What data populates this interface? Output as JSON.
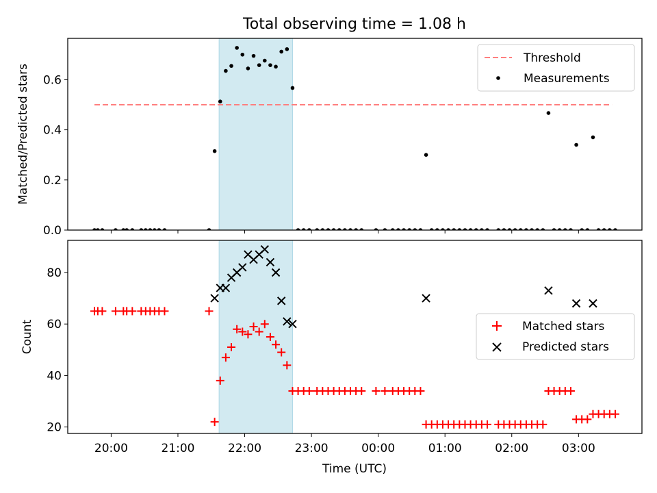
{
  "figure": {
    "title": "Total observing time = 1.08 h",
    "xlabel": "Time (UTC)",
    "xticks": [
      {
        "t": 20.0,
        "label": "20:00"
      },
      {
        "t": 21.0,
        "label": "21:00"
      },
      {
        "t": 22.0,
        "label": "22:00"
      },
      {
        "t": 23.0,
        "label": "23:00"
      },
      {
        "t": 24.0,
        "label": "00:00"
      },
      {
        "t": 25.0,
        "label": "01:00"
      },
      {
        "t": 26.0,
        "label": "02:00"
      },
      {
        "t": 27.0,
        "label": "03:00"
      }
    ],
    "colors": {
      "threshold": "#ff7f7f",
      "measurements": "#000000",
      "matched": "#ff0000",
      "predicted": "#000000",
      "span": "#add8e6"
    }
  },
  "chart_data": [
    {
      "type": "scatter",
      "ylabel": "Matched/Predicted stars",
      "ylim": [
        0.0,
        0.765
      ],
      "yticks": [
        {
          "v": 0.0,
          "label": "0.0"
        },
        {
          "v": 0.2,
          "label": "0.2"
        },
        {
          "v": 0.4,
          "label": "0.4"
        },
        {
          "v": 0.6,
          "label": "0.6"
        }
      ],
      "xlim": [
        "19:21",
        "03:57"
      ],
      "highlight_span": [
        "21:37",
        "22:43"
      ],
      "threshold": {
        "value": 0.5,
        "from": "19:45",
        "to": "03:30"
      },
      "legend": {
        "placement": "upper right",
        "entries": [
          "Threshold",
          "Measurements"
        ]
      },
      "series": [
        {
          "name": "Measurements",
          "marker": "dot",
          "points": [
            [
              "19:45",
              0.0
            ],
            [
              "19:48",
              0.0
            ],
            [
              "19:52",
              0.0
            ],
            [
              "20:04",
              0.0
            ],
            [
              "20:11",
              0.0
            ],
            [
              "20:14",
              0.0
            ],
            [
              "20:19",
              0.0
            ],
            [
              "20:27",
              0.0
            ],
            [
              "20:31",
              0.0
            ],
            [
              "20:35",
              0.0
            ],
            [
              "20:39",
              0.0
            ],
            [
              "20:43",
              0.0
            ],
            [
              "20:48",
              0.0
            ],
            [
              "21:28",
              0.0
            ],
            [
              "21:33",
              0.315
            ],
            [
              "21:38",
              0.513
            ],
            [
              "21:43",
              0.635
            ],
            [
              "21:48",
              0.655
            ],
            [
              "21:53",
              0.727
            ],
            [
              "21:58",
              0.7
            ],
            [
              "22:03",
              0.645
            ],
            [
              "22:08",
              0.695
            ],
            [
              "22:13",
              0.658
            ],
            [
              "22:18",
              0.676
            ],
            [
              "22:23",
              0.658
            ],
            [
              "22:28",
              0.652
            ],
            [
              "22:33",
              0.712
            ],
            [
              "22:38",
              0.722
            ],
            [
              "22:43",
              0.567
            ],
            [
              "22:48",
              0.0
            ],
            [
              "22:53",
              0.0
            ],
            [
              "22:58",
              0.0
            ],
            [
              "23:05",
              0.0
            ],
            [
              "23:10",
              0.0
            ],
            [
              "23:15",
              0.0
            ],
            [
              "23:20",
              0.0
            ],
            [
              "23:25",
              0.0
            ],
            [
              "23:30",
              0.0
            ],
            [
              "23:35",
              0.0
            ],
            [
              "23:40",
              0.0
            ],
            [
              "23:45",
              0.0
            ],
            [
              "23:58",
              0.0
            ],
            [
              "00:06",
              0.0
            ],
            [
              "00:13",
              0.0
            ],
            [
              "00:18",
              0.0
            ],
            [
              "00:23",
              0.0
            ],
            [
              "00:28",
              0.0
            ],
            [
              "00:33",
              0.0
            ],
            [
              "00:38",
              0.0
            ],
            [
              "00:43",
              0.3
            ],
            [
              "00:48",
              0.0
            ],
            [
              "00:53",
              0.0
            ],
            [
              "00:58",
              0.0
            ],
            [
              "01:03",
              0.0
            ],
            [
              "01:08",
              0.0
            ],
            [
              "01:13",
              0.0
            ],
            [
              "01:18",
              0.0
            ],
            [
              "01:23",
              0.0
            ],
            [
              "01:28",
              0.0
            ],
            [
              "01:33",
              0.0
            ],
            [
              "01:38",
              0.0
            ],
            [
              "01:48",
              0.0
            ],
            [
              "01:53",
              0.0
            ],
            [
              "01:58",
              0.0
            ],
            [
              "02:03",
              0.0
            ],
            [
              "02:08",
              0.0
            ],
            [
              "02:13",
              0.0
            ],
            [
              "02:18",
              0.0
            ],
            [
              "02:23",
              0.0
            ],
            [
              "02:28",
              0.0
            ],
            [
              "02:33",
              0.467
            ],
            [
              "02:38",
              0.0
            ],
            [
              "02:43",
              0.0
            ],
            [
              "02:48",
              0.0
            ],
            [
              "02:53",
              0.0
            ],
            [
              "02:58",
              0.34
            ],
            [
              "03:03",
              0.0
            ],
            [
              "03:08",
              0.0
            ],
            [
              "03:13",
              0.37
            ],
            [
              "03:18",
              0.0
            ],
            [
              "03:23",
              0.0
            ],
            [
              "03:28",
              0.0
            ],
            [
              "03:33",
              0.0
            ]
          ]
        }
      ]
    },
    {
      "type": "scatter",
      "ylabel": "Count",
      "ylim": [
        17.5,
        92.5
      ],
      "yticks": [
        {
          "v": 20,
          "label": "20"
        },
        {
          "v": 40,
          "label": "40"
        },
        {
          "v": 60,
          "label": "60"
        },
        {
          "v": 80,
          "label": "80"
        }
      ],
      "xlim": [
        "19:21",
        "03:57"
      ],
      "highlight_span": [
        "21:37",
        "22:43"
      ],
      "legend": {
        "placement": "center right",
        "entries": [
          "Matched stars",
          "Predicted stars"
        ]
      },
      "series": [
        {
          "name": "Matched stars",
          "marker": "plus",
          "points": [
            [
              "19:45",
              65
            ],
            [
              "19:48",
              65
            ],
            [
              "19:52",
              65
            ],
            [
              "20:04",
              65
            ],
            [
              "20:11",
              65
            ],
            [
              "20:14",
              65
            ],
            [
              "20:19",
              65
            ],
            [
              "20:27",
              65
            ],
            [
              "20:31",
              65
            ],
            [
              "20:35",
              65
            ],
            [
              "20:39",
              65
            ],
            [
              "20:43",
              65
            ],
            [
              "20:48",
              65
            ],
            [
              "21:28",
              65
            ],
            [
              "21:33",
              22
            ],
            [
              "21:38",
              38
            ],
            [
              "21:43",
              47
            ],
            [
              "21:48",
              51
            ],
            [
              "21:53",
              58
            ],
            [
              "21:58",
              57
            ],
            [
              "22:03",
              56
            ],
            [
              "22:08",
              59
            ],
            [
              "22:13",
              57
            ],
            [
              "22:18",
              60
            ],
            [
              "22:23",
              55
            ],
            [
              "22:28",
              52
            ],
            [
              "22:33",
              49
            ],
            [
              "22:38",
              44
            ],
            [
              "22:43",
              34
            ],
            [
              "22:48",
              34
            ],
            [
              "22:53",
              34
            ],
            [
              "22:58",
              34
            ],
            [
              "23:05",
              34
            ],
            [
              "23:10",
              34
            ],
            [
              "23:15",
              34
            ],
            [
              "23:20",
              34
            ],
            [
              "23:25",
              34
            ],
            [
              "23:30",
              34
            ],
            [
              "23:35",
              34
            ],
            [
              "23:40",
              34
            ],
            [
              "23:45",
              34
            ],
            [
              "23:58",
              34
            ],
            [
              "00:06",
              34
            ],
            [
              "00:13",
              34
            ],
            [
              "00:18",
              34
            ],
            [
              "00:23",
              34
            ],
            [
              "00:28",
              34
            ],
            [
              "00:33",
              34
            ],
            [
              "00:38",
              34
            ],
            [
              "00:43",
              21
            ],
            [
              "00:48",
              21
            ],
            [
              "00:53",
              21
            ],
            [
              "00:58",
              21
            ],
            [
              "01:03",
              21
            ],
            [
              "01:08",
              21
            ],
            [
              "01:13",
              21
            ],
            [
              "01:18",
              21
            ],
            [
              "01:23",
              21
            ],
            [
              "01:28",
              21
            ],
            [
              "01:33",
              21
            ],
            [
              "01:38",
              21
            ],
            [
              "01:48",
              21
            ],
            [
              "01:53",
              21
            ],
            [
              "01:58",
              21
            ],
            [
              "02:03",
              21
            ],
            [
              "02:08",
              21
            ],
            [
              "02:13",
              21
            ],
            [
              "02:18",
              21
            ],
            [
              "02:23",
              21
            ],
            [
              "02:28",
              21
            ],
            [
              "02:33",
              34
            ],
            [
              "02:38",
              34
            ],
            [
              "02:43",
              34
            ],
            [
              "02:48",
              34
            ],
            [
              "02:53",
              34
            ],
            [
              "02:58",
              23
            ],
            [
              "03:03",
              23
            ],
            [
              "03:08",
              23
            ],
            [
              "03:13",
              25
            ],
            [
              "03:18",
              25
            ],
            [
              "03:23",
              25
            ],
            [
              "03:28",
              25
            ],
            [
              "03:33",
              25
            ]
          ]
        },
        {
          "name": "Predicted stars",
          "marker": "x",
          "points": [
            [
              "21:33",
              70
            ],
            [
              "21:38",
              74
            ],
            [
              "21:43",
              74
            ],
            [
              "21:48",
              78
            ],
            [
              "21:53",
              80
            ],
            [
              "21:58",
              82
            ],
            [
              "22:03",
              87
            ],
            [
              "22:08",
              85
            ],
            [
              "22:13",
              87
            ],
            [
              "22:18",
              89
            ],
            [
              "22:23",
              84
            ],
            [
              "22:28",
              80
            ],
            [
              "22:33",
              69
            ],
            [
              "22:38",
              61
            ],
            [
              "22:43",
              60
            ],
            [
              "00:43",
              70
            ],
            [
              "02:33",
              73
            ],
            [
              "02:58",
              68
            ],
            [
              "03:13",
              68
            ]
          ]
        }
      ]
    }
  ]
}
